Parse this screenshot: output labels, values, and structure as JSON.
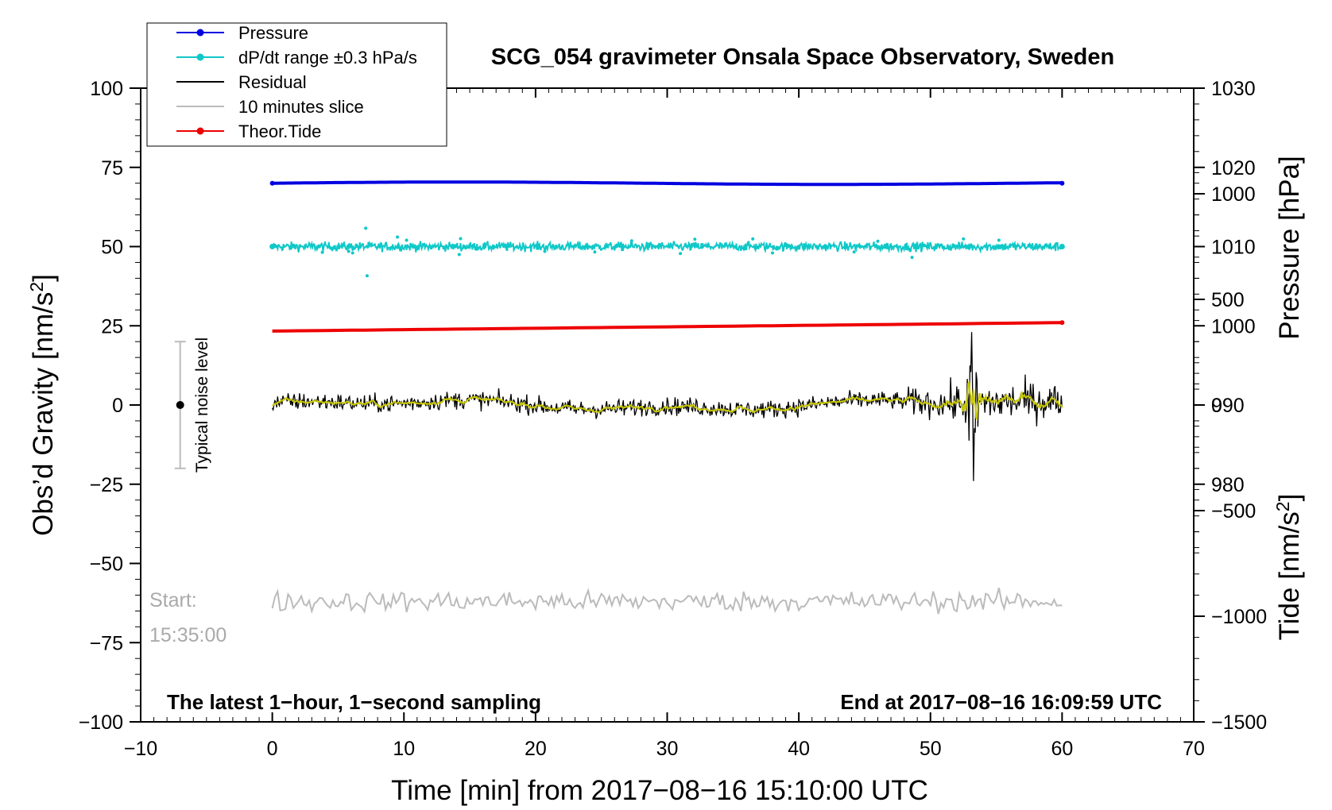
{
  "chart_data": {
    "type": "line",
    "title": "SCG_054 gravimeter Onsala Space Observatory, Sweden",
    "xlabel": "Time [min] from 2017−08−16 15:10:00 UTC",
    "ylabel_left": "Obs’d Gravity [nm/s²]",
    "ylabel_right_top": "Pressure [hPa]",
    "ylabel_right_bottom": "Tide [nm/s²]",
    "xlim": [
      -10,
      70
    ],
    "ylim": [
      -100,
      100
    ],
    "x_ticks": [
      -10,
      0,
      10,
      20,
      30,
      40,
      50,
      60,
      70
    ],
    "x_tick_labels": [
      "−10",
      "0",
      "10",
      "20",
      "30",
      "40",
      "50",
      "60",
      "70"
    ],
    "y_ticks": [
      100,
      75,
      50,
      25,
      0,
      -25,
      -50,
      -75,
      -100
    ],
    "y_tick_labels": [
      "100",
      "75",
      "50",
      "25",
      "0",
      "−25",
      "−50",
      "−75",
      "−100"
    ],
    "pressure_axis": {
      "range": [
        950,
        1030
      ],
      "ticks": [
        1030,
        1020,
        1010,
        1000,
        990,
        980
      ],
      "tick_labels": [
        "1030",
        "1020",
        "1010",
        "1000",
        "990",
        "980"
      ]
    },
    "tide_axis": {
      "range": [
        -1500,
        1500
      ],
      "ticks": [
        1000,
        500,
        0,
        -500,
        -1000,
        -1500
      ],
      "tick_labels": [
        "1000",
        "500",
        "0",
        "−500",
        "−1000",
        "−1500"
      ]
    },
    "legend": {
      "placement": "top-left",
      "entries": [
        {
          "label": "Pressure",
          "color": "#0000e0",
          "marker": true
        },
        {
          "label": "dP/dt range ±0.3 hPa/s",
          "color": "#10c8c8",
          "marker": true
        },
        {
          "label": "Residual",
          "color": "#000000",
          "marker": false
        },
        {
          "label": "10 minutes slice",
          "color": "#bbbbbb",
          "marker": false
        },
        {
          "label": "Theor.Tide",
          "color": "#ee0000",
          "marker": true
        }
      ]
    },
    "series": [
      {
        "name": "Pressure",
        "color": "#0000e0",
        "axis": "pressure",
        "x_range": [
          0,
          60
        ],
        "level": 1018
      },
      {
        "name": "dP/dt",
        "color": "#10c8c8",
        "axis": "left",
        "x_range": [
          0,
          60
        ],
        "level": 50
      },
      {
        "name": "Residual",
        "color": "#000000",
        "axis": "left",
        "x_range": [
          0,
          60
        ],
        "level": 0,
        "event_x": 53.2,
        "event_max": 23,
        "event_min": -24
      },
      {
        "name": "Residual (smoothed)",
        "color": "#c8c800",
        "axis": "left",
        "x_range": [
          0,
          60
        ],
        "level": 0
      },
      {
        "name": "10 minutes slice",
        "color": "#bbbbbb",
        "axis": "left",
        "x_range": [
          0,
          60
        ],
        "level": -62
      },
      {
        "name": "Theor.Tide",
        "color": "#ee0000",
        "axis": "tide",
        "x_range": [
          0,
          60
        ],
        "start": 350,
        "end": 390
      }
    ],
    "annotations": {
      "noise_label": "Typical noise level",
      "noise_x": -7,
      "noise_range": [
        -20,
        20
      ],
      "start_label_1": "Start:",
      "start_label_2": "15:35:00",
      "footer_left": "The latest 1−hour, 1−second sampling",
      "footer_right": "End at 2017−08−16 16:09:59 UTC"
    }
  }
}
